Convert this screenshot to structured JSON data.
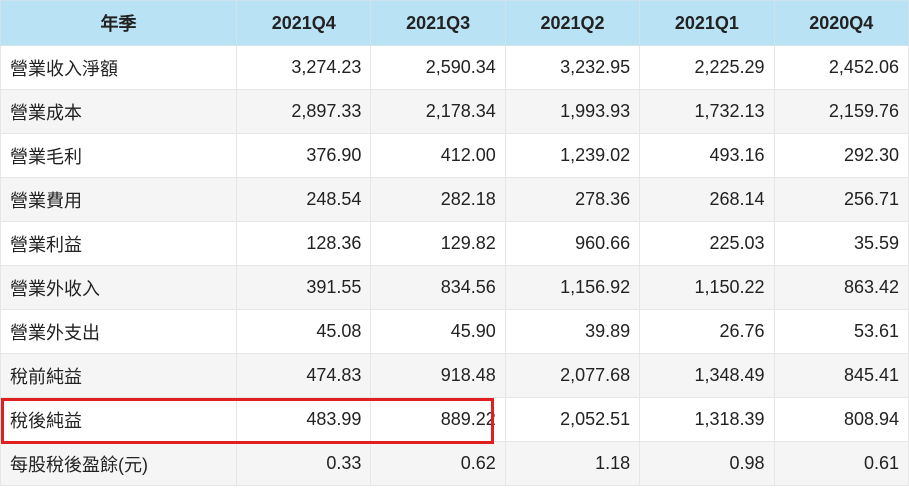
{
  "table": {
    "header": [
      "年季",
      "2021Q4",
      "2021Q3",
      "2021Q2",
      "2021Q1",
      "2020Q4"
    ],
    "rows": [
      {
        "label": "營業收入淨額",
        "values": [
          "3,274.23",
          "2,590.34",
          "3,232.95",
          "2,225.29",
          "2,452.06"
        ]
      },
      {
        "label": "營業成本",
        "values": [
          "2,897.33",
          "2,178.34",
          "1,993.93",
          "1,732.13",
          "2,159.76"
        ]
      },
      {
        "label": "營業毛利",
        "values": [
          "376.90",
          "412.00",
          "1,239.02",
          "493.16",
          "292.30"
        ]
      },
      {
        "label": "營業費用",
        "values": [
          "248.54",
          "282.18",
          "278.36",
          "268.14",
          "256.71"
        ]
      },
      {
        "label": "營業利益",
        "values": [
          "128.36",
          "129.82",
          "960.66",
          "225.03",
          "35.59"
        ]
      },
      {
        "label": "營業外收入",
        "values": [
          "391.55",
          "834.56",
          "1,156.92",
          "1,150.22",
          "863.42"
        ]
      },
      {
        "label": "營業外支出",
        "values": [
          "45.08",
          "45.90",
          "39.89",
          "26.76",
          "53.61"
        ]
      },
      {
        "label": "稅前純益",
        "values": [
          "474.83",
          "918.48",
          "2,077.68",
          "1,348.49",
          "845.41"
        ]
      },
      {
        "label": "稅後純益",
        "values": [
          "483.99",
          "889.22",
          "2,052.51",
          "1,318.39",
          "808.94"
        ]
      },
      {
        "label": "每股稅後盈餘(元)",
        "values": [
          "0.33",
          "0.62",
          "1.18",
          "0.98",
          "0.61"
        ]
      }
    ]
  },
  "colors": {
    "header_bg": "#b9e3f5",
    "stripe_bg": "#f5f5f5",
    "highlight": "#e02020"
  }
}
